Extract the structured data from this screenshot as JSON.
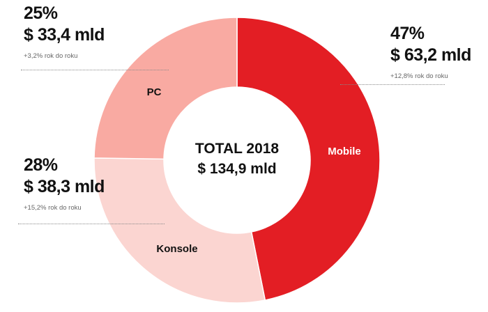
{
  "chart_data": {
    "type": "pie",
    "donut": true,
    "center_label": {
      "line1": "TOTAL 2018",
      "line2": "$ 134,9 mld"
    },
    "categories": [
      "Mobile",
      "Konsole",
      "PC"
    ],
    "values": [
      63.2,
      38.3,
      33.4
    ],
    "shares_pct": [
      47,
      28,
      25
    ],
    "colors": [
      "#e31e24",
      "#fbd5d1",
      "#f9aaa2"
    ],
    "callouts": [
      {
        "segment": "PC",
        "percent": "25%",
        "amount": "$ 33,4 mld",
        "change": "+3,2% rok do roku"
      },
      {
        "segment": "Konsole",
        "percent": "28%",
        "amount": "$ 38,3 mld",
        "change": "+15,2% rok do roku"
      },
      {
        "segment": "Mobile",
        "percent": "47%",
        "amount": "$ 63,2 mld",
        "change": "+12,8% rok do roku"
      }
    ]
  }
}
